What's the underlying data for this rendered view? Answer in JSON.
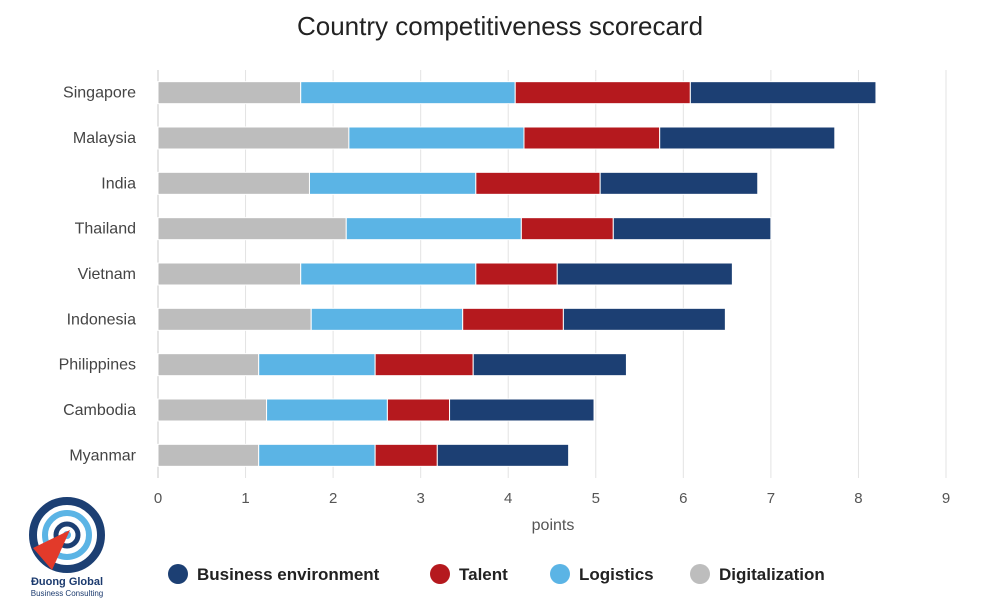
{
  "logo": {
    "name": "Đuong Global",
    "tagline": "Business Consulting"
  },
  "chart_data": {
    "type": "bar",
    "orientation": "horizontal",
    "stacked": true,
    "title": "Country competitiveness scorecard",
    "xlabel": "points",
    "ylabel": "",
    "xlim": [
      0,
      9
    ],
    "xticks": [
      0,
      1,
      2,
      3,
      4,
      5,
      6,
      7,
      8,
      9
    ],
    "grid": "vertical",
    "legend_position": "bottom",
    "categories": [
      "Singapore",
      "Malaysia",
      "India",
      "Thailand",
      "Vietnam",
      "Indonesia",
      "Philippines",
      "Cambodia",
      "Myanmar"
    ],
    "series": [
      {
        "name": "Digitalization",
        "color": "#bdbdbd",
        "values": [
          1.63,
          2.18,
          1.73,
          2.15,
          1.63,
          1.75,
          1.15,
          1.24,
          1.15
        ]
      },
      {
        "name": "Logistics",
        "color": "#5bb4e5",
        "values": [
          2.45,
          2.0,
          1.9,
          2.0,
          2.0,
          1.73,
          1.33,
          1.38,
          1.33
        ]
      },
      {
        "name": "Talent",
        "color": "#b5191e",
        "values": [
          2.0,
          1.55,
          1.42,
          1.05,
          0.93,
          1.15,
          1.12,
          0.71,
          0.71
        ]
      },
      {
        "name": "Business environment",
        "color": "#1c3f73",
        "values": [
          2.12,
          2.0,
          1.8,
          1.8,
          2.0,
          1.85,
          1.75,
          1.65,
          1.5
        ]
      }
    ],
    "legend_order": [
      "Business environment",
      "Talent",
      "Logistics",
      "Digitalization"
    ]
  }
}
